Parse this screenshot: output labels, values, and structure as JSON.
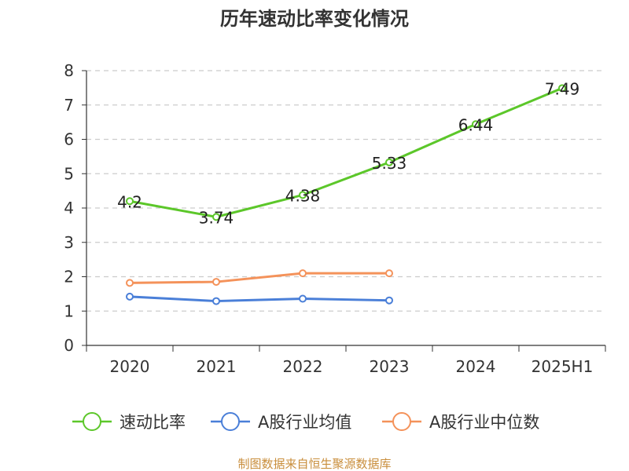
{
  "chart_data": {
    "type": "line",
    "title": "历年速动比率变化情况",
    "categories": [
      "2020",
      "2021",
      "2022",
      "2023",
      "2024",
      "2025H1"
    ],
    "ylim": [
      0,
      8
    ],
    "yticks": [
      "0",
      "1",
      "2",
      "3",
      "4",
      "5",
      "6",
      "7",
      "8"
    ],
    "grid": true,
    "legend_position": "bottom",
    "series": [
      {
        "name": "速动比率",
        "color": "#5cc72a",
        "values": [
          4.2,
          3.74,
          4.38,
          5.33,
          6.44,
          7.49
        ],
        "labels": [
          "4.2",
          "3.74",
          "4.38",
          "5.33",
          "6.44",
          "7.49"
        ]
      },
      {
        "name": "A股行业均值",
        "color": "#4a7fd8",
        "values": [
          1.42,
          1.29,
          1.36,
          1.31,
          null,
          null
        ]
      },
      {
        "name": "A股行业中位数",
        "color": "#f4925a",
        "values": [
          1.82,
          1.85,
          2.1,
          2.1,
          null,
          null
        ]
      }
    ],
    "source": "制图数据来自恒生聚源数据库"
  }
}
